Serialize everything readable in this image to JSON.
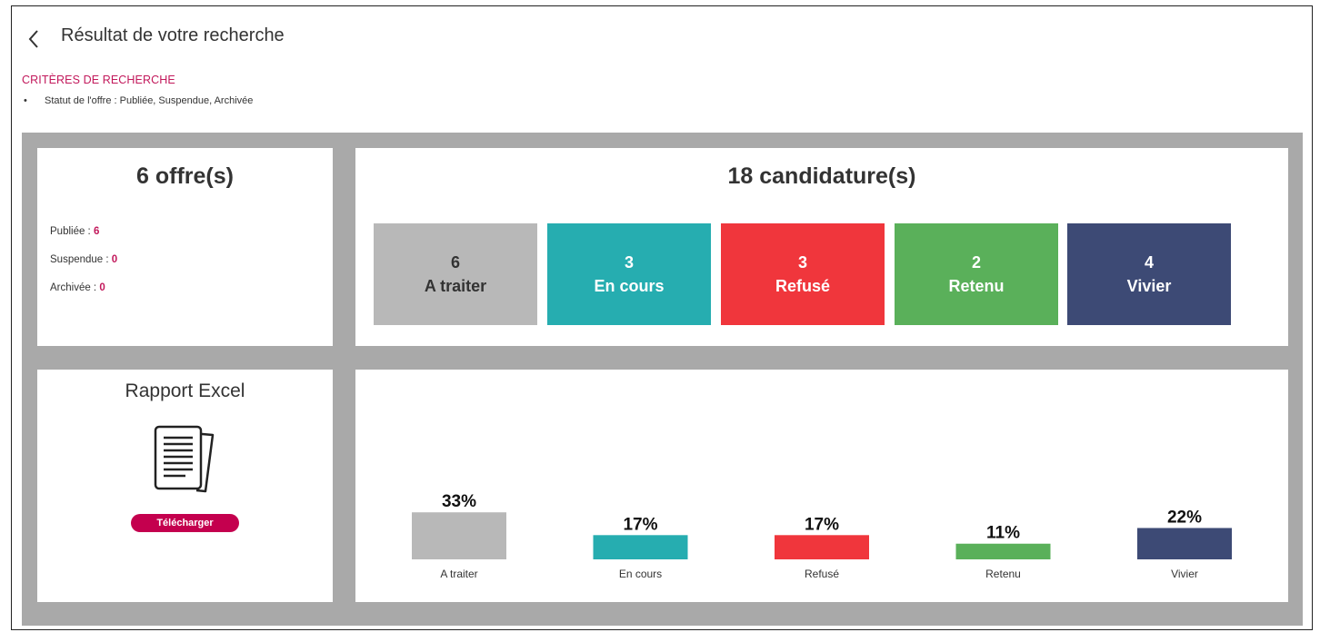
{
  "header": {
    "title": "Résultat de votre recherche"
  },
  "criteria": {
    "title": "CRITÈRES DE RECHERCHE",
    "bullet": "•",
    "items": [
      "Statut de l'offre : Publiée, Suspendue, Archivée"
    ]
  },
  "offers": {
    "title": "6 offre(s)",
    "lines": [
      {
        "label": "Publiée : ",
        "value": "6"
      },
      {
        "label": "Suspendue : ",
        "value": "0"
      },
      {
        "label": "Archivée : ",
        "value": "0"
      }
    ]
  },
  "candidatures": {
    "title": "18 candidature(s)",
    "statuses": [
      {
        "count": "6",
        "label": "A traiter",
        "color": "#b8b8b8"
      },
      {
        "count": "3",
        "label": "En cours",
        "color": "#26adb0"
      },
      {
        "count": "3",
        "label": "Refusé",
        "color": "#f0363c"
      },
      {
        "count": "2",
        "label": "Retenu",
        "color": "#5ab05a"
      },
      {
        "count": "4",
        "label": "Vivier",
        "color": "#3d4a75"
      }
    ]
  },
  "report": {
    "title": "Rapport Excel",
    "icon": "document-icon",
    "download_label": "Télécharger"
  },
  "chart_data": {
    "type": "bar",
    "categories": [
      "A traiter",
      "En cours",
      "Refusé",
      "Retenu",
      "Vivier"
    ],
    "values": [
      33,
      17,
      17,
      11,
      22
    ],
    "value_labels": [
      "33%",
      "17%",
      "17%",
      "11%",
      "22%"
    ],
    "colors": [
      "#b8b8b8",
      "#26adb0",
      "#f0363c",
      "#5ab05a",
      "#3d4a75"
    ],
    "title": "",
    "xlabel": "",
    "ylabel": "",
    "grid": false
  }
}
